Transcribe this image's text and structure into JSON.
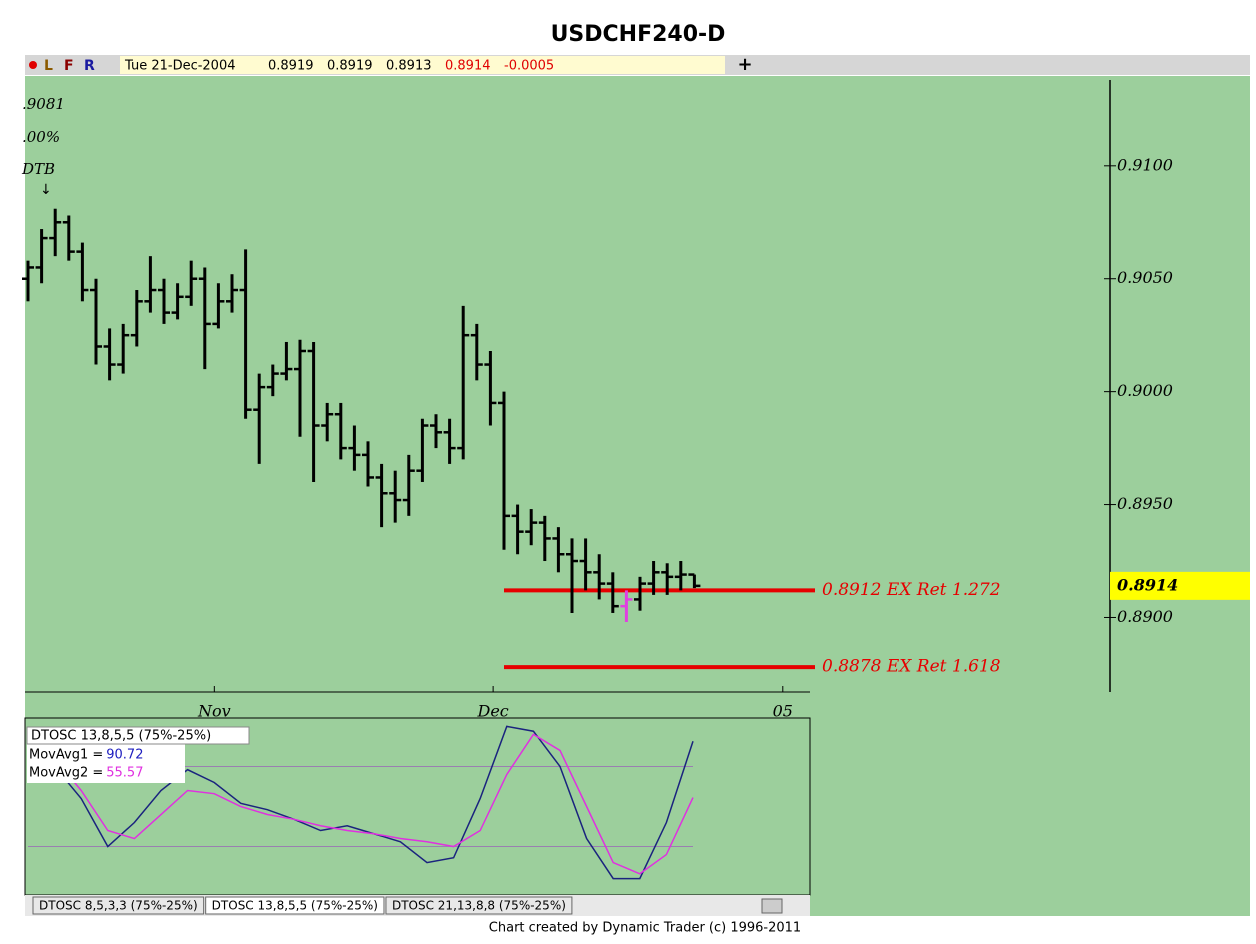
{
  "chart_data": [
    {
      "type": "ohlc",
      "title": "USDCHF240-D",
      "toolbar": {
        "letters": [
          "L",
          "F",
          "R"
        ],
        "date": "Tue 21-Dec-2004",
        "fields": [
          "0.8919",
          "0.8919",
          "0.8913",
          "0.8914",
          "-0.0005"
        ]
      },
      "annotations": [
        ".9081",
        ".00%",
        "DTB"
      ],
      "color": "#000000",
      "highlight": 44,
      "highlight_color": "#e040e0",
      "open": [
        0.905,
        0.9055,
        0.9068,
        0.9075,
        0.9062,
        0.9045,
        0.902,
        0.9012,
        0.9025,
        0.904,
        0.9045,
        0.9035,
        0.9042,
        0.905,
        0.903,
        0.904,
        0.9045,
        0.8992,
        0.9002,
        0.9008,
        0.901,
        0.9018,
        0.8985,
        0.899,
        0.8975,
        0.8972,
        0.8962,
        0.8955,
        0.8952,
        0.8965,
        0.8985,
        0.8982,
        0.8975,
        0.9025,
        0.9012,
        0.8995,
        0.8945,
        0.8938,
        0.8942,
        0.8935,
        0.8928,
        0.8925,
        0.892,
        0.8915,
        0.8905,
        0.8908,
        0.8915,
        0.892,
        0.8918,
        0.8919
      ],
      "high": [
        0.9058,
        0.9072,
        0.9081,
        0.9078,
        0.9066,
        0.905,
        0.9028,
        0.903,
        0.9045,
        0.906,
        0.905,
        0.9048,
        0.9058,
        0.9055,
        0.9048,
        0.9052,
        0.9063,
        0.9008,
        0.9012,
        0.9022,
        0.9023,
        0.9022,
        0.8995,
        0.8995,
        0.8985,
        0.8978,
        0.8968,
        0.8965,
        0.8972,
        0.8988,
        0.899,
        0.8988,
        0.9038,
        0.903,
        0.9018,
        0.9,
        0.895,
        0.8948,
        0.8945,
        0.894,
        0.8935,
        0.8935,
        0.8928,
        0.892,
        0.8912,
        0.8918,
        0.8925,
        0.8924,
        0.8925,
        0.8919
      ],
      "low": [
        0.904,
        0.9048,
        0.906,
        0.9058,
        0.904,
        0.9012,
        0.9005,
        0.9008,
        0.902,
        0.9035,
        0.903,
        0.9032,
        0.9038,
        0.901,
        0.9028,
        0.9035,
        0.8988,
        0.8968,
        0.8998,
        0.9005,
        0.898,
        0.896,
        0.8978,
        0.897,
        0.8965,
        0.8958,
        0.894,
        0.8942,
        0.8945,
        0.896,
        0.8975,
        0.8968,
        0.897,
        0.9005,
        0.8985,
        0.893,
        0.8928,
        0.8932,
        0.8925,
        0.892,
        0.8902,
        0.8912,
        0.8908,
        0.8902,
        0.8898,
        0.8903,
        0.891,
        0.891,
        0.8912,
        0.8913
      ],
      "close": [
        0.9055,
        0.9068,
        0.9075,
        0.9062,
        0.9045,
        0.902,
        0.9012,
        0.9025,
        0.904,
        0.9045,
        0.9035,
        0.9042,
        0.905,
        0.903,
        0.904,
        0.9045,
        0.8992,
        0.9002,
        0.9008,
        0.901,
        0.9018,
        0.8985,
        0.899,
        0.8975,
        0.8972,
        0.8962,
        0.8955,
        0.8952,
        0.8965,
        0.8985,
        0.8982,
        0.8975,
        0.9025,
        0.9012,
        0.8995,
        0.8945,
        0.8938,
        0.8942,
        0.8935,
        0.8928,
        0.8925,
        0.892,
        0.8915,
        0.8905,
        0.8908,
        0.8915,
        0.892,
        0.8918,
        0.8919,
        0.8914
      ],
      "ylim": [
        0.8867,
        0.9138
      ],
      "yticks": [
        {
          "value": 0.91,
          "label": "0.9100"
        },
        {
          "value": 0.905,
          "label": "0.9050"
        },
        {
          "value": 0.9,
          "label": "0.9000"
        },
        {
          "value": 0.895,
          "label": "0.8950"
        },
        {
          "value": 0.89,
          "label": "0.8900"
        }
      ],
      "xticks": [
        {
          "value": 13.7,
          "label": "Nov"
        },
        {
          "value": 34.2,
          "label": "Dec"
        },
        {
          "value": 55.5,
          "label": "05"
        }
      ],
      "levels": [
        {
          "value": 0.8912,
          "label": "0.8912 EX Ret 1.272"
        },
        {
          "value": 0.8878,
          "label": "0.8878 EX Ret 1.618"
        }
      ],
      "level_color": "#e60000",
      "last_color": "#ffff00"
    },
    {
      "type": "line",
      "title": "DTOSC 13,8,5,5 (75%-25%)",
      "series": [
        {
          "name": "MovAvg1 =",
          "value_label": "90.72",
          "color": "#1a237e",
          "label_color": "#2020c0",
          "values": [
            85,
            75,
            55,
            25,
            40,
            60,
            73,
            65,
            52,
            48,
            42,
            35,
            38,
            33,
            28,
            15,
            18,
            55,
            100,
            97,
            75,
            30,
            5,
            5,
            40,
            90.72
          ]
        },
        {
          "name": "MovAvg2 =",
          "value_label": "55.57",
          "color": "#e030e0",
          "label_color": "#e030e0",
          "values": [
            90,
            80,
            60,
            35,
            30,
            45,
            60,
            58,
            50,
            45,
            42,
            38,
            35,
            33,
            30,
            28,
            25,
            35,
            70,
            95,
            85,
            50,
            15,
            8,
            20,
            55.57
          ]
        }
      ],
      "ylim": [
        -4,
        104
      ],
      "bands": [
        25,
        75
      ],
      "tabs": [
        "DTOSC 8,5,3,3 (75%-25%)",
        "DTOSC 13,8,5,5 (75%-25%)",
        "DTOSC 21,13,8,8 (75%-25%)"
      ],
      "active_tab": 1
    },
    {
      "type": "footer",
      "text": "Chart created by Dynamic Trader  (c) 1996-2011"
    }
  ]
}
